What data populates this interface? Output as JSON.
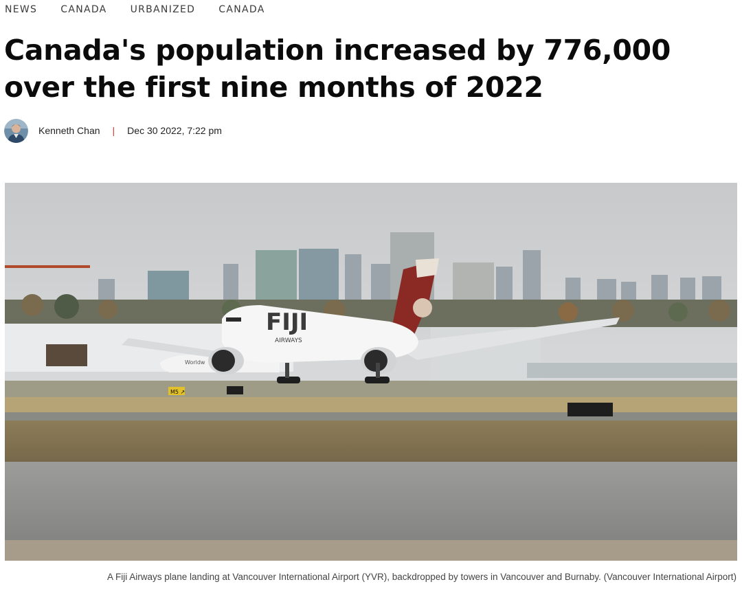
{
  "breadcrumbs": [
    "NEWS",
    "CANADA",
    "URBANIZED",
    "CANADA"
  ],
  "article": {
    "title": "Canada's population increased by 776,000 over the first nine months of 2022",
    "author": "Kenneth Chan",
    "separator": "|",
    "date": "Dec 30 2022, 7:22 pm"
  },
  "hero": {
    "subject": "Fiji Airways plane landing, city towers in background",
    "tail_text": "FIJI",
    "fuselage_text": "AIRWAYS",
    "sign_text": "M5 ↗",
    "caption": "A Fiji Airways plane landing at Vancouver International Airport (YVR), backdropped by towers in Vancouver and Burnaby. (Vancouver International Airport)"
  },
  "colors": {
    "separator": "#c0392b",
    "headline": "#0b0b0b",
    "sky": "#cfd2d4"
  }
}
